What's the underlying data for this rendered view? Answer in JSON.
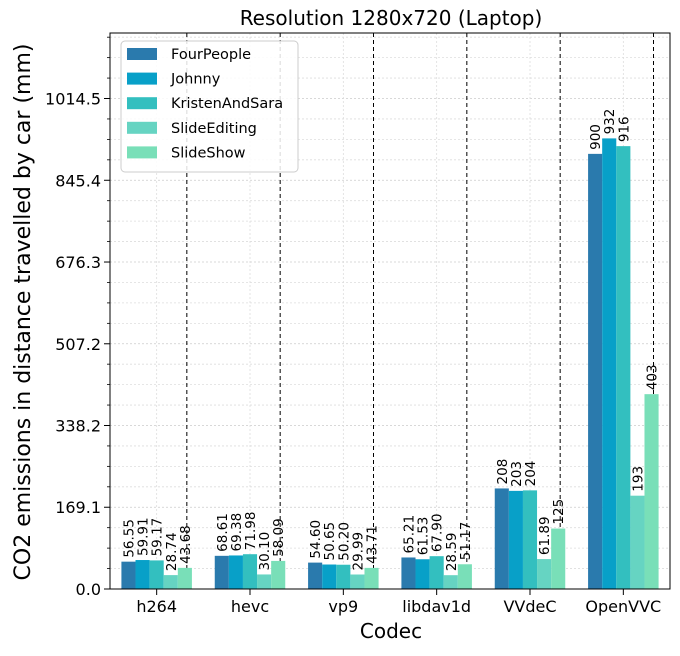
{
  "chart_data": {
    "type": "bar",
    "title": "Resolution 1280x720 (Laptop)",
    "xlabel": "Codec",
    "ylabel": "CO2 emissions in distance travelled by car (mm)",
    "categories": [
      "h264",
      "hevc",
      "vp9",
      "libdav1d",
      "VVdeC",
      "OpenVVC"
    ],
    "ylim": [
      0,
      1150
    ],
    "yticks": [
      0.0,
      169.1,
      338.2,
      507.2,
      676.3,
      845.4,
      1014.5
    ],
    "ytick_labels": [
      "0.0",
      "169.1",
      "338.2",
      "507.2",
      "676.3",
      "845.4",
      "1014.5"
    ],
    "grid": true,
    "legend_position": "upper-left",
    "series": [
      {
        "name": "FourPeople",
        "color": "#2a7aad",
        "values": [
          56.55,
          68.61,
          54.6,
          65.21,
          208,
          900
        ],
        "labels": [
          "56.55",
          "68.61",
          "54.60",
          "65.21",
          "208",
          "900"
        ]
      },
      {
        "name": "Johnny",
        "color": "#08a0c8",
        "values": [
          59.91,
          69.38,
          50.65,
          61.53,
          203,
          932
        ],
        "labels": [
          "59.91",
          "69.38",
          "50.65",
          "61.53",
          "203",
          "932"
        ]
      },
      {
        "name": "KristenAndSara",
        "color": "#33bfbf",
        "values": [
          59.17,
          71.98,
          50.2,
          67.9,
          204,
          916
        ],
        "labels": [
          "59.17",
          "71.98",
          "50.20",
          "67.90",
          "204",
          "916"
        ]
      },
      {
        "name": "SlideEditing",
        "color": "#66d4c2",
        "values": [
          28.74,
          30.1,
          29.99,
          28.59,
          61.89,
          193
        ],
        "labels": [
          "28.74",
          "30.10",
          "29.99",
          "28.59",
          "61.89",
          "193"
        ]
      },
      {
        "name": "SlideShow",
        "color": "#79dfb8",
        "values": [
          43.68,
          58.09,
          43.71,
          51.17,
          125,
          403
        ],
        "labels": [
          "43.68",
          "58.09",
          "43.71",
          "51.17",
          "125",
          "403"
        ]
      }
    ]
  }
}
